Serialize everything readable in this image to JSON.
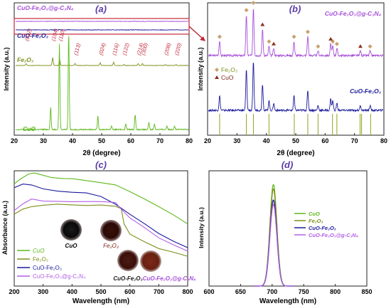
{
  "chart_data": [
    {
      "panel": "(a)",
      "type": "line",
      "xlabel": "2θ (degree)",
      "ylabel": "Intensity (a.u.)",
      "xlim": [
        20,
        80
      ],
      "xticks": [
        "20",
        "30",
        "40",
        "50",
        "60",
        "70",
        "80"
      ],
      "series": [
        {
          "name": "CuO-Fe₂O₃@g-C₃N₄",
          "color": "#a64fd9",
          "peaks": [
            [
              32.5,
              0.25
            ],
            [
              35.5,
              0.5
            ],
            [
              38.7,
              0.3
            ],
            [
              48.7,
              0.15
            ],
            [
              53.9,
              0.12
            ],
            [
              58.3,
              0.1
            ],
            [
              61.6,
              0.12
            ],
            [
              66,
              0.1
            ]
          ]
        },
        {
          "name": "CuO-Fe₂O₃",
          "color": "#1a1a9e",
          "peaks": [
            [
              32.5,
              0.3
            ],
            [
              35.5,
              0.6
            ],
            [
              38.7,
              0.35
            ],
            [
              48.7,
              0.2
            ],
            [
              61.6,
              0.15
            ]
          ]
        },
        {
          "name": "Fe₂O₃",
          "color": "#7d8f1a",
          "peaks": [
            [
              24.1,
              3
            ],
            [
              33.2,
              12
            ],
            [
              35.6,
              9
            ],
            [
              40.9,
              3
            ],
            [
              49.5,
              4
            ],
            [
              54.1,
              5
            ],
            [
              57.6,
              1.5
            ],
            [
              62.5,
              3
            ],
            [
              64,
              3
            ],
            [
              71.9,
              1.5
            ],
            [
              75.5,
              1.5
            ]
          ]
        },
        {
          "name": "CuO",
          "color": "#5fb81a",
          "peaks": [
            [
              32.5,
              12
            ],
            [
              35.5,
              46
            ],
            [
              38.7,
              52
            ],
            [
              48.7,
              7
            ],
            [
              53.4,
              2
            ],
            [
              58.3,
              3
            ],
            [
              61.5,
              8
            ],
            [
              66.2,
              4
            ],
            [
              68.1,
              3
            ],
            [
              72.4,
              2
            ],
            [
              75,
              2
            ]
          ]
        }
      ],
      "annotations": [
        "(012)",
        "(104)",
        "(110)",
        "(113)",
        "(024)",
        "(116)",
        "(122)",
        "(214)",
        "(300)",
        "(208)",
        "(220)"
      ]
    },
    {
      "panel": "(b)",
      "type": "line",
      "xlabel": "2θ (degree)",
      "ylabel": "Intensity (a.u.)",
      "xlim": [
        20,
        80
      ],
      "xticks": [
        "20",
        "30",
        "40",
        "50",
        "60",
        "70",
        "80"
      ],
      "legend": [
        "Fe₂O₃",
        "CuO"
      ],
      "series": [
        {
          "name": "CuO-Fe₂O₃@g-C₃N₄",
          "color": "#a64fd9",
          "peaks": [
            [
              24.1,
              0.3
            ],
            [
              33.2,
              0.85
            ],
            [
              35.6,
              1
            ],
            [
              38.7,
              0.55
            ],
            [
              40.9,
              0.2
            ],
            [
              42.5,
              0.15
            ],
            [
              49.4,
              0.3
            ],
            [
              54.1,
              0.4
            ],
            [
              57.6,
              0.1
            ],
            [
              61.9,
              0.25
            ],
            [
              62.6,
              0.2
            ],
            [
              64,
              0.15
            ],
            [
              72,
              0.1
            ],
            [
              75.3,
              0.1
            ]
          ]
        },
        {
          "name": "CuO-Fe₂O₃",
          "color": "#1a1a9e",
          "peaks": [
            [
              24.1,
              0.3
            ],
            [
              33.2,
              0.85
            ],
            [
              35.6,
              1
            ],
            [
              38.7,
              0.55
            ],
            [
              40.9,
              0.2
            ],
            [
              42.5,
              0.15
            ],
            [
              49.4,
              0.3
            ],
            [
              54.1,
              0.4
            ],
            [
              57.6,
              0.1
            ],
            [
              61.9,
              0.25
            ],
            [
              62.6,
              0.2
            ],
            [
              64,
              0.15
            ],
            [
              72,
              0.1
            ],
            [
              75.3,
              0.1
            ]
          ]
        }
      ],
      "ref_lines": [
        24.1,
        33.2,
        35.6,
        40.9,
        49.5,
        54.1,
        57.6,
        62.5,
        64,
        71.9,
        72.4,
        75.5
      ]
    },
    {
      "panel": "(c)",
      "type": "line",
      "xlabel": "Wavelength (nm)",
      "ylabel": "Absorbance (a.u.)",
      "xlim": [
        200,
        800
      ],
      "xticks": [
        "200",
        "300",
        "400",
        "500",
        "600",
        "700",
        "800"
      ],
      "series": [
        {
          "name": "CuO",
          "color": "#5fb81a",
          "x": [
            200,
            220,
            250,
            270,
            300,
            330,
            370,
            400,
            450,
            500,
            550,
            600,
            650,
            700,
            750,
            800
          ],
          "y": [
            0.82,
            0.86,
            0.9,
            0.91,
            0.89,
            0.87,
            0.86,
            0.86,
            0.85,
            0.83,
            0.81,
            0.76,
            0.7,
            0.64,
            0.57,
            0.5
          ]
        },
        {
          "name": "Fe₂O₃",
          "color": "#7d8f1a",
          "x": [
            200,
            230,
            260,
            300,
            350,
            400,
            450,
            500,
            550,
            570,
            580,
            600,
            650,
            700,
            750,
            800
          ],
          "y": [
            0.58,
            0.62,
            0.64,
            0.65,
            0.66,
            0.65,
            0.65,
            0.65,
            0.64,
            0.62,
            0.5,
            0.42,
            0.36,
            0.3,
            0.27,
            0.24
          ]
        },
        {
          "name": "CuO-Fe₂O₃",
          "color": "#1a1a9e",
          "x": [
            200,
            230,
            260,
            300,
            350,
            400,
            450,
            500,
            550,
            600,
            650,
            700,
            750,
            800
          ],
          "y": [
            0.79,
            0.82,
            0.81,
            0.78,
            0.76,
            0.75,
            0.75,
            0.72,
            0.66,
            0.58,
            0.5,
            0.42,
            0.36,
            0.31
          ]
        },
        {
          "name": "CuO-Fe₂O₃@g-C₃N₄",
          "color": "#b25ee6",
          "x": [
            200,
            230,
            260,
            300,
            350,
            400,
            450,
            500,
            550,
            570,
            600,
            650,
            700,
            750,
            800
          ],
          "y": [
            0.61,
            0.66,
            0.7,
            0.68,
            0.68,
            0.68,
            0.68,
            0.68,
            0.67,
            0.62,
            0.55,
            0.47,
            0.39,
            0.33,
            0.28
          ]
        }
      ],
      "photos": [
        "CuO",
        "Fe₂O₃",
        "CuO-Fe₂O₃",
        "CuO-Fe₂O₃@g-C₃N₄"
      ]
    },
    {
      "panel": "(d)",
      "type": "line",
      "xlabel": "Wavelength (nm)",
      "ylabel": "Intensity (a.u.)",
      "xlim": [
        600,
        850
      ],
      "xticks": [
        "600",
        "650",
        "700",
        "750",
        "800",
        "850"
      ],
      "peak_center": 702,
      "series": [
        {
          "name": "CuO",
          "color": "#5fb81a",
          "peak": 0.92
        },
        {
          "name": "Fe₂O₃",
          "color": "#7d8f1a",
          "peak": 0.88
        },
        {
          "name": "CuO-Fe₂O₃",
          "color": "#1a1a9e",
          "peak": 0.78
        },
        {
          "name": "CuO-Fe₂O₃@g-C₃N₄",
          "color": "#b25ee6",
          "peak": 0.74
        }
      ]
    }
  ]
}
